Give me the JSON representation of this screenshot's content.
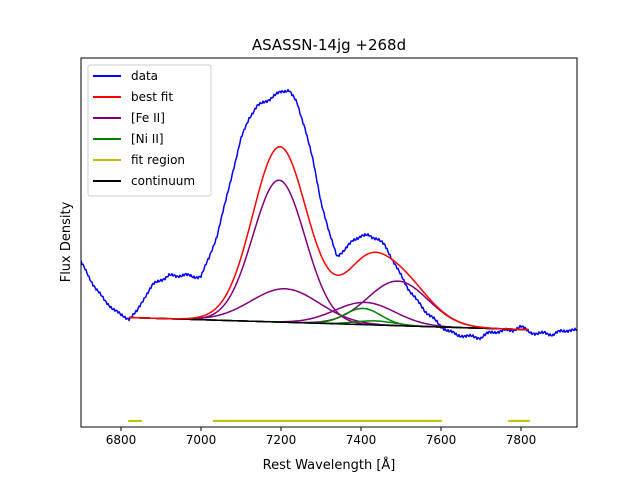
{
  "chart_data": {
    "type": "line",
    "title": "ASASSN-14jg  +268d",
    "xlabel": "Rest Wavelength [Å]",
    "ylabel": "Flux Density",
    "xlim": [
      6700,
      7940
    ],
    "ylim": [
      -0.48,
      1.34
    ],
    "xticks": [
      6800,
      7000,
      7200,
      7400,
      7600,
      7800
    ],
    "yticks_shown": false,
    "grid": false,
    "legend_position": "top-left",
    "legend": [
      {
        "label": "data",
        "color": "#0000ff"
      },
      {
        "label": "best fit",
        "color": "#ff0000"
      },
      {
        "label": "[Fe II]",
        "color": "#800080"
      },
      {
        "label": "[Ni II]",
        "color": "#008000"
      },
      {
        "label": "fit region",
        "color": "#bfbf00"
      },
      {
        "label": "continuum",
        "color": "#000000"
      }
    ],
    "continuum": {
      "x": [
        6820,
        7820
      ],
      "y": [
        0.06,
        0.0
      ]
    },
    "components": [
      {
        "name": "[Fe II]",
        "color": "#800080",
        "center": 7195,
        "amplitude": 0.7,
        "sigma": 65
      },
      {
        "name": "[Fe II]",
        "color": "#800080",
        "center": 7210,
        "amplitude": 0.165,
        "sigma": 85
      },
      {
        "name": "[Fe II]",
        "color": "#800080",
        "center": 7410,
        "amplitude": 0.11,
        "sigma": 75
      },
      {
        "name": "[Fe II]",
        "color": "#800080",
        "center": 7492,
        "amplitude": 0.22,
        "sigma": 75
      },
      {
        "name": "[Ni II]",
        "color": "#008000",
        "center": 7405,
        "amplitude": 0.08,
        "sigma": 45
      },
      {
        "name": "[Ni II]",
        "color": "#008000",
        "center": 7435,
        "amplitude": 0.02,
        "sigma": 50
      }
    ],
    "fit_regions": [
      [
        6818,
        6852
      ],
      [
        7030,
        7602
      ],
      [
        7768,
        7822
      ]
    ],
    "fit_region_level": -0.45,
    "data_series": {
      "name": "data",
      "color": "#0000ff",
      "x": [
        6700,
        6720,
        6740,
        6760,
        6780,
        6800,
        6820,
        6840,
        6860,
        6880,
        6900,
        6920,
        6940,
        6960,
        6980,
        7000,
        7020,
        7040,
        7060,
        7080,
        7100,
        7120,
        7140,
        7160,
        7180,
        7200,
        7220,
        7240,
        7260,
        7280,
        7300,
        7320,
        7340,
        7360,
        7380,
        7400,
        7420,
        7440,
        7460,
        7480,
        7500,
        7520,
        7540,
        7560,
        7580,
        7600,
        7620,
        7640,
        7660,
        7680,
        7700,
        7720,
        7740,
        7760,
        7780,
        7800,
        7820,
        7840,
        7860,
        7880,
        7900,
        7920,
        7940
      ],
      "y": [
        0.33,
        0.26,
        0.2,
        0.14,
        0.1,
        0.07,
        0.06,
        0.09,
        0.16,
        0.22,
        0.25,
        0.27,
        0.26,
        0.27,
        0.26,
        0.27,
        0.35,
        0.46,
        0.62,
        0.79,
        0.94,
        1.04,
        1.1,
        1.13,
        1.15,
        1.17,
        1.18,
        1.12,
        1.0,
        0.83,
        0.63,
        0.48,
        0.37,
        0.39,
        0.44,
        0.46,
        0.47,
        0.45,
        0.41,
        0.34,
        0.27,
        0.2,
        0.14,
        0.09,
        0.06,
        0.02,
        -0.01,
        -0.03,
        -0.03,
        -0.03,
        -0.04,
        -0.02,
        -0.01,
        0.0,
        0.0,
        0.01,
        -0.01,
        -0.02,
        -0.01,
        -0.03,
        -0.01,
        0.0,
        0.0
      ]
    }
  }
}
